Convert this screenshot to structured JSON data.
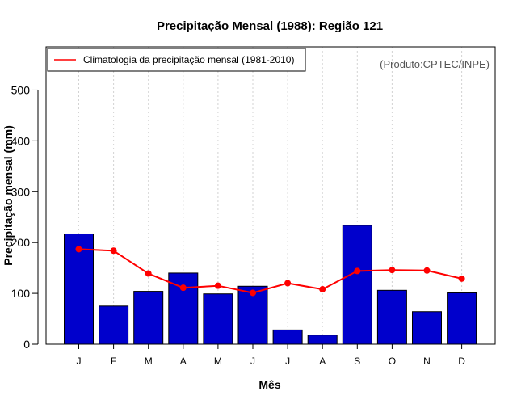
{
  "chart_data": {
    "type": "bar",
    "title": "Precipitação Mensal (1988): Região 121",
    "xlabel": "Mês",
    "ylabel": "Precipitação mensal (mm)",
    "ylim": [
      0,
      585
    ],
    "yticks": [
      0,
      100,
      200,
      300,
      400,
      500
    ],
    "categories": [
      "J",
      "F",
      "M",
      "A",
      "M",
      "J",
      "J",
      "A",
      "S",
      "O",
      "N",
      "D"
    ],
    "series": [
      {
        "name": "Precipitação mensal 1988",
        "type": "bar",
        "color": "#0000cc",
        "values": [
          217,
          75,
          104,
          140,
          99,
          114,
          28,
          18,
          234,
          106,
          64,
          101
        ]
      },
      {
        "name": "Climatologia da precipitação mensal (1981-2010)",
        "type": "line",
        "color": "#ff0000",
        "values": [
          187,
          184,
          139,
          111,
          115,
          101,
          120,
          108,
          144,
          146,
          145,
          129
        ]
      }
    ],
    "legend": {
      "position": "top-left",
      "entries": [
        "Climatologia da precipitação mensal (1981-2010)"
      ]
    },
    "annotation": "(Produto:CPTEC/INPE)",
    "grid": "vertical-dotted"
  }
}
